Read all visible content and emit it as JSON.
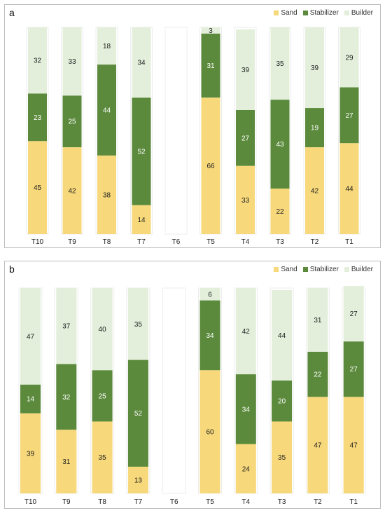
{
  "colors": {
    "sand": "#f7d87a",
    "stabilizer": "#5b8a3c",
    "builder": "#e3efdb",
    "bar_bg": "#ffffff"
  },
  "chart_data": [
    {
      "type": "bar",
      "stacked": true,
      "panel_label": "a",
      "categories": [
        "T10",
        "T9",
        "T8",
        "T7",
        "T6",
        "T5",
        "T4",
        "T3",
        "T2",
        "T1"
      ],
      "series": [
        {
          "name": "Sand",
          "values": [
            45,
            42,
            38,
            14,
            null,
            66,
            33,
            22,
            42,
            44
          ]
        },
        {
          "name": "Stabilizer",
          "values": [
            23,
            25,
            44,
            52,
            null,
            31,
            27,
            43,
            19,
            27
          ]
        },
        {
          "name": "Builder",
          "values": [
            32,
            33,
            18,
            34,
            null,
            3,
            39,
            35,
            39,
            29
          ]
        }
      ],
      "legend": [
        "Sand",
        "Stabilizer",
        "Builder"
      ],
      "legend_position": "top-right",
      "ylim": [
        0,
        100
      ],
      "grid": false
    },
    {
      "type": "bar",
      "stacked": true,
      "panel_label": "b",
      "categories": [
        "T10",
        "T9",
        "T8",
        "T7",
        "T6",
        "T5",
        "T4",
        "T3",
        "T2",
        "T1"
      ],
      "series": [
        {
          "name": "Sand",
          "values": [
            39,
            31,
            35,
            13,
            null,
            60,
            24,
            35,
            47,
            47
          ]
        },
        {
          "name": "Stabilizer",
          "values": [
            14,
            32,
            25,
            52,
            null,
            34,
            34,
            20,
            22,
            27
          ]
        },
        {
          "name": "Builder",
          "values": [
            47,
            37,
            40,
            35,
            null,
            6,
            42,
            44,
            31,
            27
          ]
        }
      ],
      "legend": [
        "Sand",
        "Stabilizer",
        "Builder"
      ],
      "legend_position": "top-right",
      "ylim": [
        0,
        100
      ],
      "grid": false
    }
  ]
}
